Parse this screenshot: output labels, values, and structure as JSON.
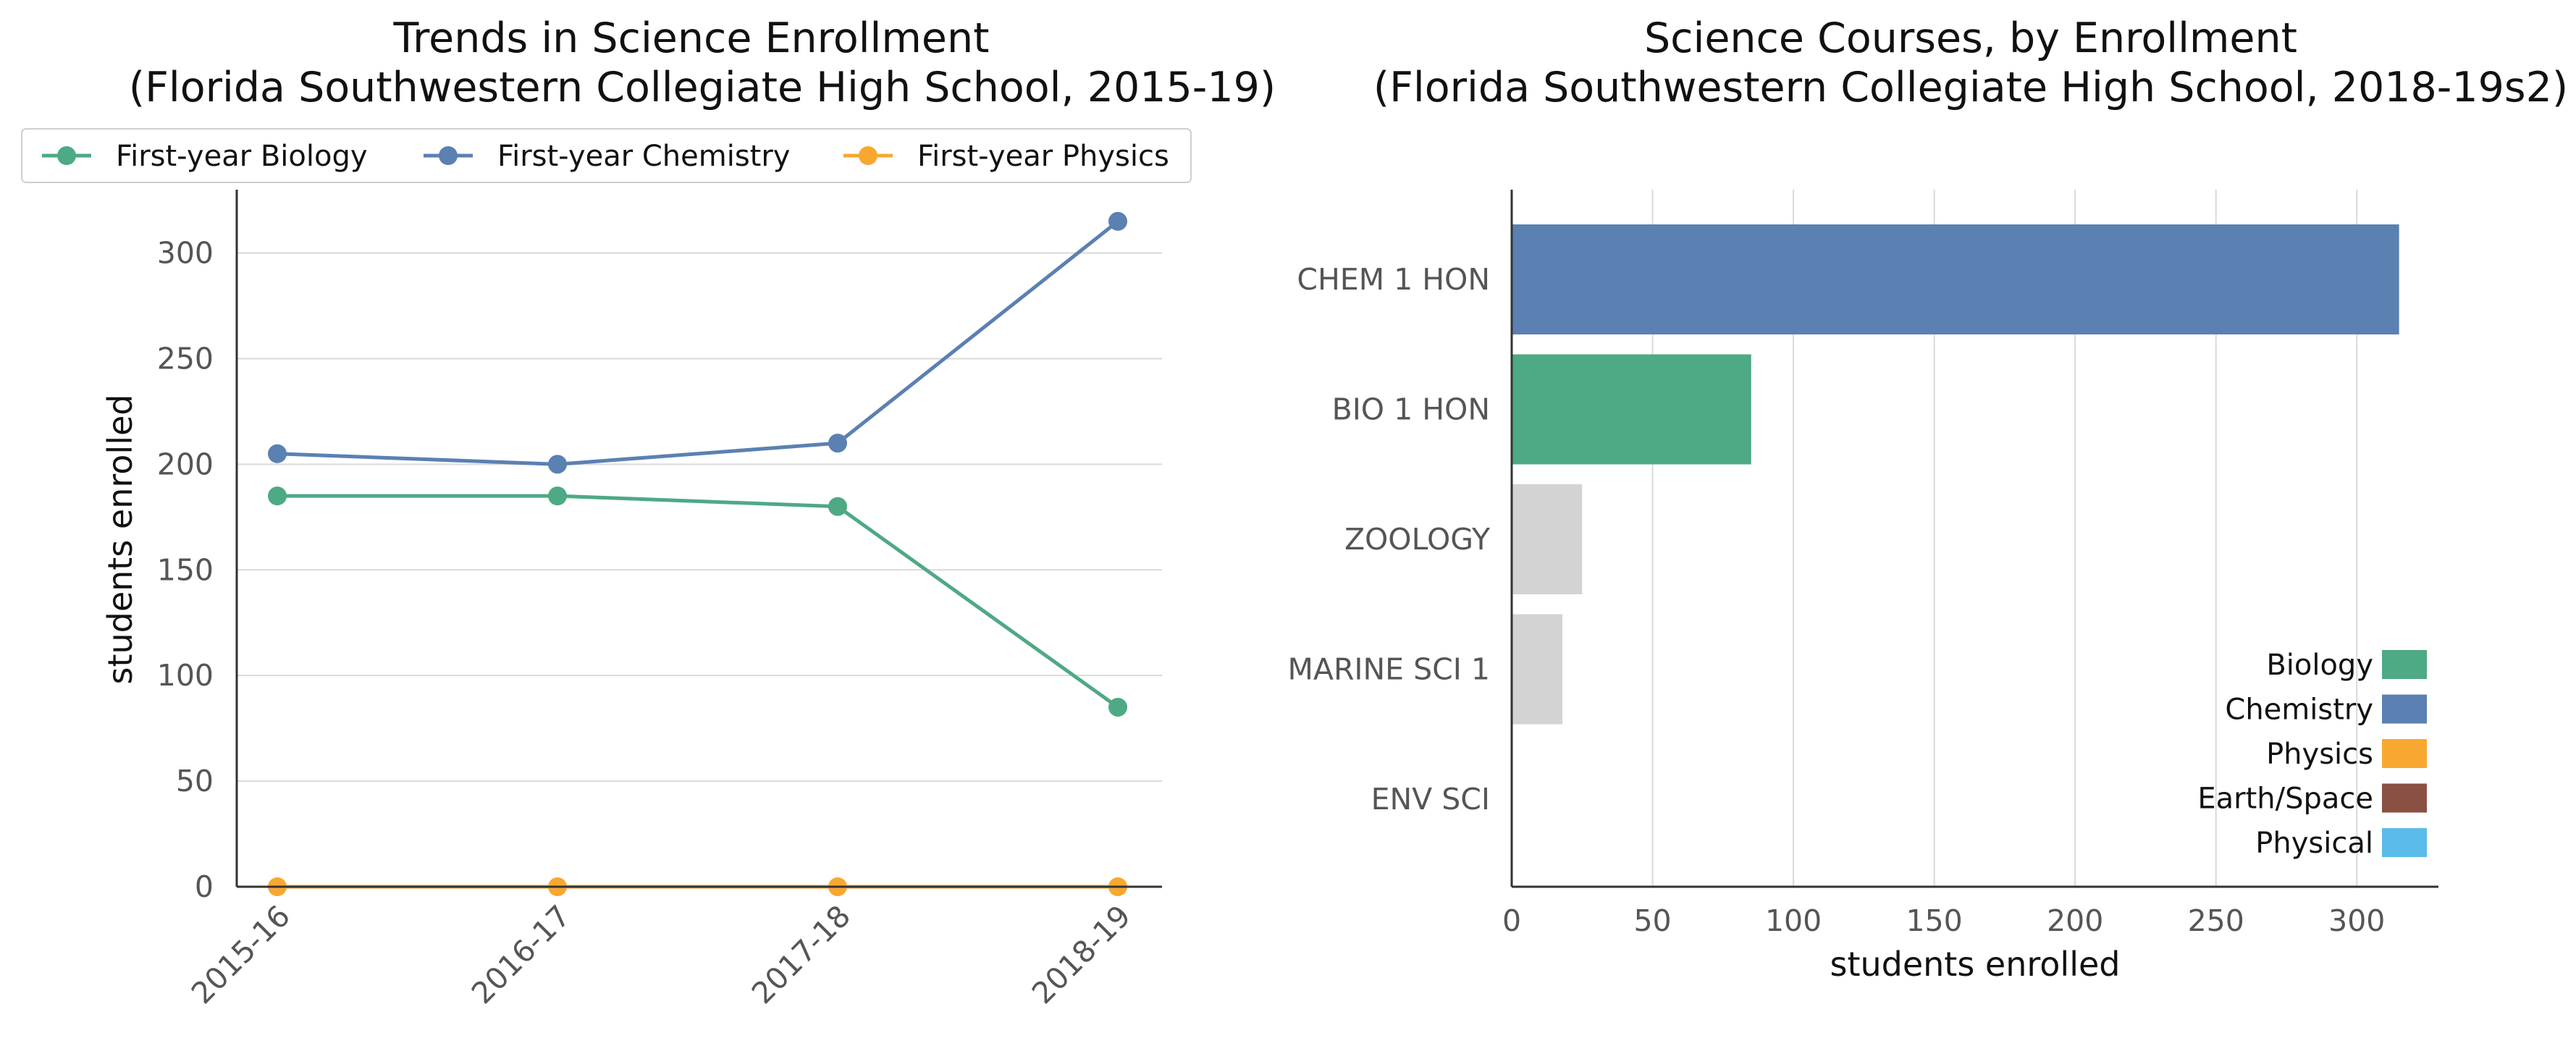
{
  "chart_data": [
    {
      "type": "line",
      "title": "Trends in Science Enrollment",
      "subtitle": "(Florida Southwestern Collegiate High School, 2015-19)",
      "xlabel": "",
      "ylabel": "students enrolled",
      "categories": [
        "2015-16",
        "2016-17",
        "2017-18",
        "2018-19"
      ],
      "series": [
        {
          "name": "First-year Biology",
          "color": "#4ea985",
          "values": [
            185,
            185,
            180,
            85
          ]
        },
        {
          "name": "First-year Chemistry",
          "color": "#5b80b2",
          "values": [
            205,
            200,
            210,
            315
          ]
        },
        {
          "name": "First-year Physics",
          "color": "#f8a830",
          "values": [
            0,
            0,
            0,
            0
          ]
        }
      ],
      "ylim": [
        0,
        330
      ],
      "yticks": [
        0,
        50,
        100,
        150,
        200,
        250,
        300
      ],
      "grid": "horizontal",
      "legend_position": "top"
    },
    {
      "type": "bar",
      "orientation": "horizontal",
      "title": "Science Courses, by Enrollment",
      "subtitle": "(Florida Southwestern Collegiate High School, 2018-19s2)",
      "xlabel": "students enrolled",
      "ylabel": "",
      "categories": [
        "CHEM 1 HON",
        "BIO 1 HON",
        "ZOOLOGY",
        "MARINE SCI 1",
        "ENV SCI"
      ],
      "values": [
        315,
        85,
        25,
        18,
        0
      ],
      "bar_colors": [
        "#5b80b2",
        "#4ea985",
        "#d3d3d3",
        "#d3d3d3",
        "#d3d3d3"
      ],
      "xlim": [
        0,
        330
      ],
      "xticks": [
        0,
        50,
        100,
        150,
        200,
        250,
        300
      ],
      "grid": "vertical",
      "legend_position": "lower-right",
      "legend": [
        {
          "name": "Biology",
          "color": "#4ea985"
        },
        {
          "name": "Chemistry",
          "color": "#5b80b2"
        },
        {
          "name": "Physics",
          "color": "#f8a830"
        },
        {
          "name": "Earth/Space",
          "color": "#8a5042"
        },
        {
          "name": "Physical",
          "color": "#5bbbea"
        }
      ]
    }
  ]
}
